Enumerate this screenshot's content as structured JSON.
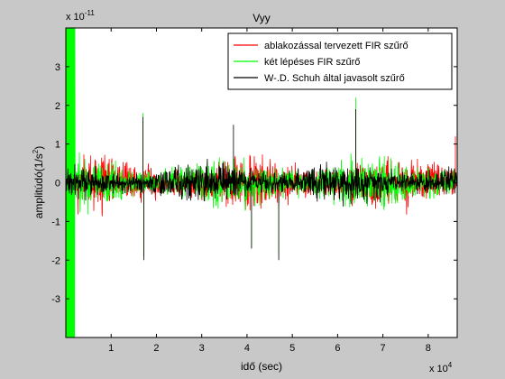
{
  "chart_data": {
    "type": "line",
    "title": "Vyy",
    "xlabel": "idő (sec)",
    "ylabel_main": "amplitúdó(1/s",
    "ylabel_sup": "2",
    "ylabel_end": ")",
    "y_exponent_base": "x 10",
    "y_exponent_power": "-11",
    "x_exponent_base": "x 10",
    "x_exponent_power": "4",
    "xlim": [
      0,
      86400
    ],
    "ylim": [
      -4e-11,
      4e-11
    ],
    "x_ticks": [
      10000,
      20000,
      30000,
      40000,
      50000,
      60000,
      70000,
      80000
    ],
    "x_tick_labels": [
      "1",
      "2",
      "3",
      "4",
      "5",
      "6",
      "7",
      "8"
    ],
    "y_ticks": [
      -3e-11,
      -2e-11,
      -1e-11,
      0,
      1e-11,
      2e-11,
      3e-11
    ],
    "y_tick_labels": [
      "-3",
      "-2",
      "-1",
      "0",
      "1",
      "2",
      "3"
    ],
    "grid": false,
    "legend_position": "top-right",
    "series": [
      {
        "name": "ablakozással tervezett FIR szűrő",
        "color": "#ff0000",
        "noise_amplitude": 8.5e-12,
        "spikes": [
          {
            "x": 17000,
            "y": 1.6e-11
          },
          {
            "x": 17200,
            "y": -1.9e-11
          },
          {
            "x": 64000,
            "y": 1.9e-11
          },
          {
            "x": 86000,
            "y": 1.2e-11
          }
        ]
      },
      {
        "name": "két lépéses FIR szűrő",
        "color": "#00ff00",
        "noise_amplitude": 8e-12,
        "edge_band_x": [
          0,
          2000
        ],
        "edge_band_amplitude": 4e-11,
        "spikes": [
          {
            "x": 17000,
            "y": 1.8e-11
          },
          {
            "x": 17200,
            "y": -1.9e-11
          },
          {
            "x": 64000,
            "y": 2.2e-11
          },
          {
            "x": 41000,
            "y": -1.7e-11
          },
          {
            "x": 47000,
            "y": -1.9e-11
          }
        ]
      },
      {
        "name": "W-.D. Schuh által javasolt szűrő",
        "color": "#000000",
        "noise_amplitude": 6.5e-12,
        "spikes": [
          {
            "x": 17000,
            "y": 1.7e-11
          },
          {
            "x": 17200,
            "y": -2e-11
          },
          {
            "x": 37000,
            "y": 1.5e-11
          },
          {
            "x": 41000,
            "y": -1.7e-11
          },
          {
            "x": 47000,
            "y": -2e-11
          },
          {
            "x": 64000,
            "y": 1.9e-11
          }
        ]
      }
    ]
  }
}
